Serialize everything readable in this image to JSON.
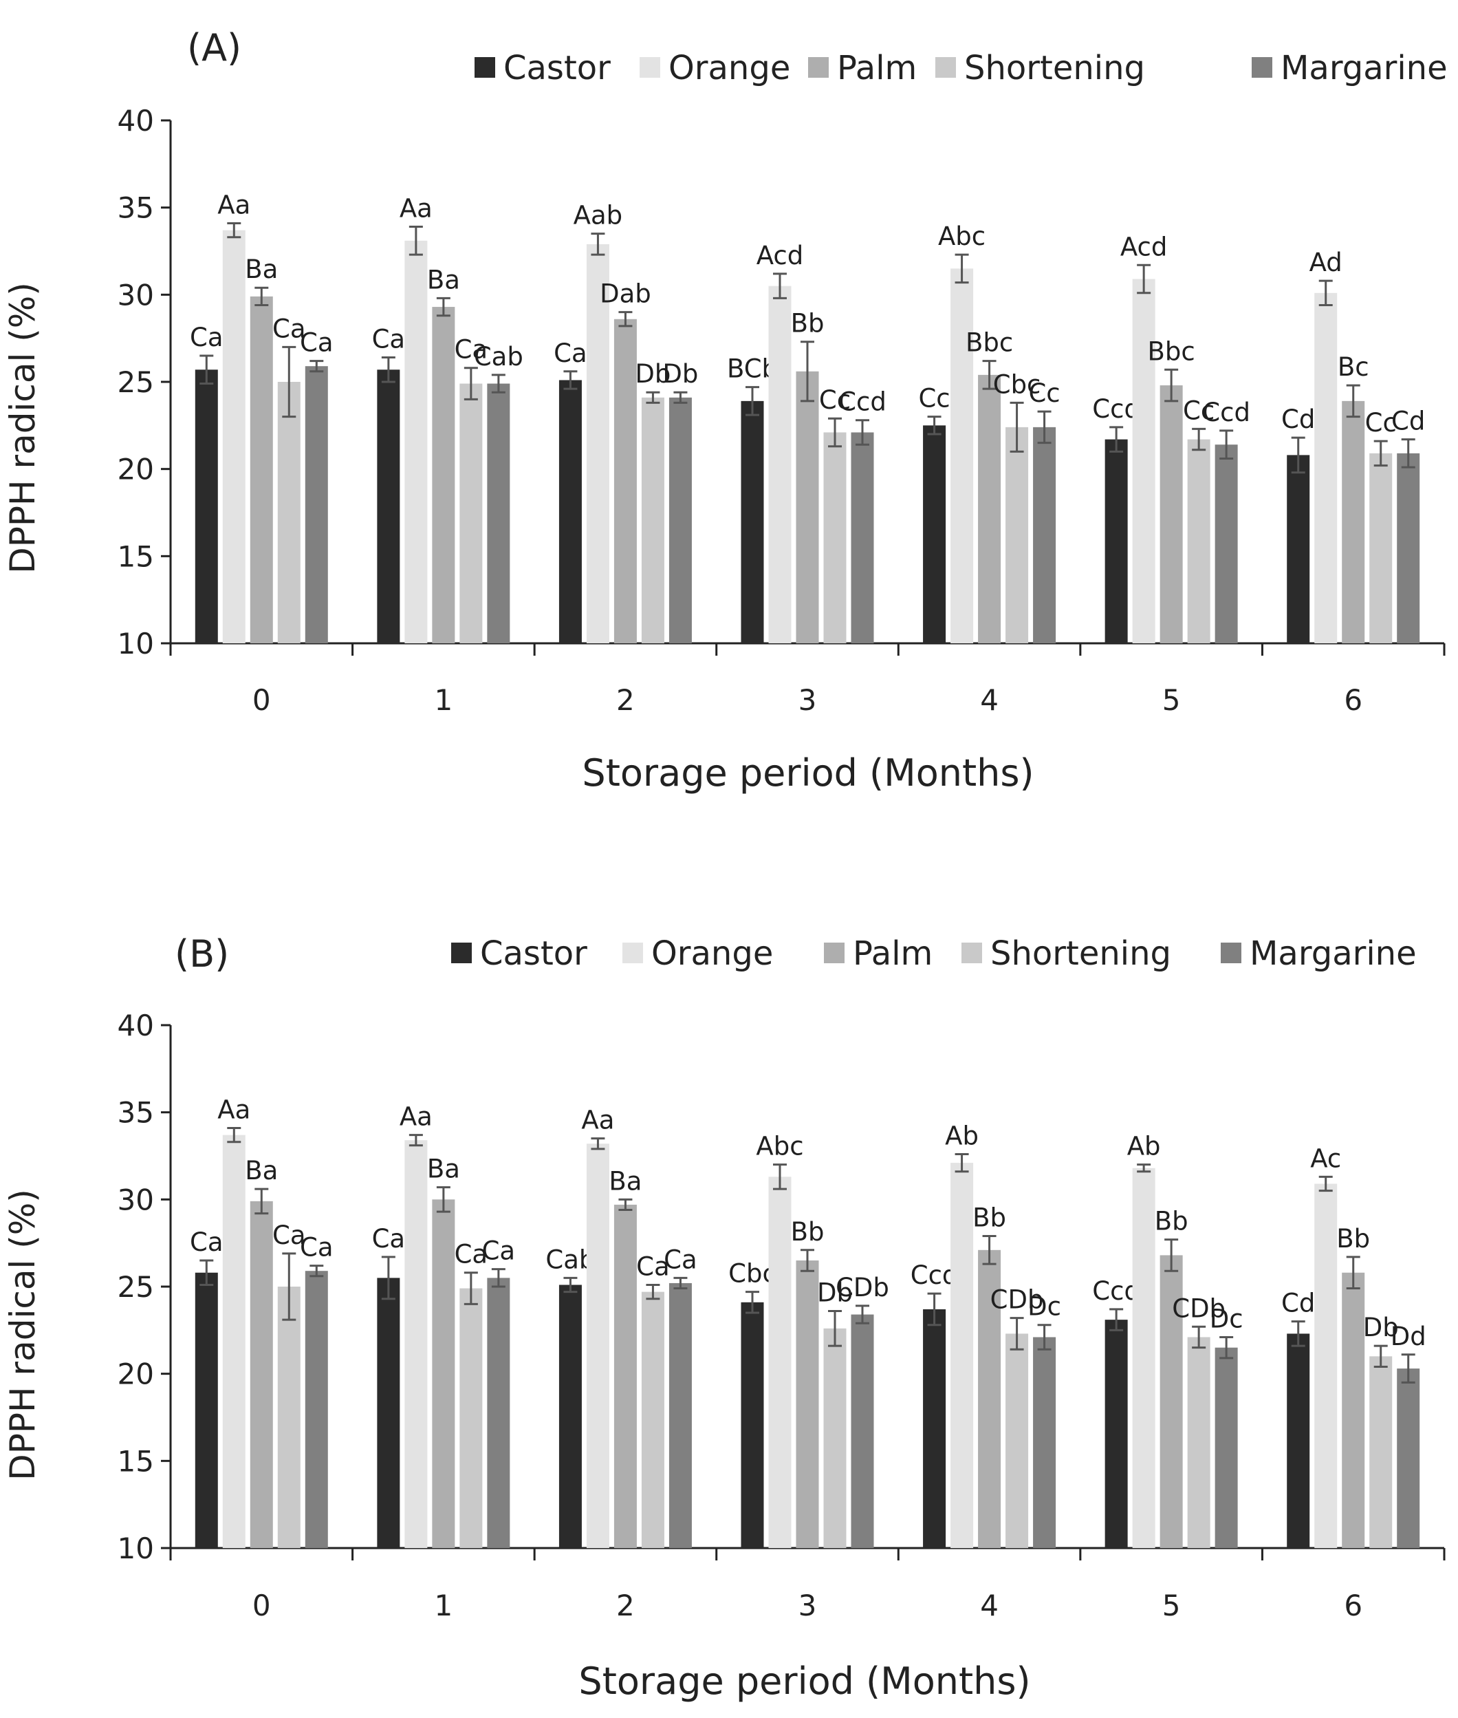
{
  "chart_data": [
    {
      "type": "bar",
      "panel_label": "(A)",
      "title": "",
      "xlabel": "Storage period (Months)",
      "ylabel": "DPPH radical (%)",
      "ylim": [
        10,
        40
      ],
      "yticks": [
        10,
        15,
        20,
        25,
        30,
        35,
        40
      ],
      "categories": [
        "0",
        "1",
        "2",
        "3",
        "4",
        "5",
        "6"
      ],
      "legend_position": "top-right",
      "series": [
        {
          "name": "Castor",
          "color": "#2b2b2b",
          "values": [
            25.7,
            25.7,
            25.1,
            23.9,
            22.5,
            21.7,
            20.8
          ],
          "errors": [
            0.8,
            0.7,
            0.5,
            0.8,
            0.5,
            0.7,
            1.0
          ],
          "labels": [
            "Ca",
            "Ca",
            "Ca",
            "BCb",
            "Cc",
            "Ccd",
            "Cd"
          ]
        },
        {
          "name": "Orange",
          "color": "#e3e3e3",
          "values": [
            33.7,
            33.1,
            32.9,
            30.5,
            31.5,
            30.9,
            30.1
          ],
          "errors": [
            0.4,
            0.8,
            0.6,
            0.7,
            0.8,
            0.8,
            0.7
          ],
          "labels": [
            "Aa",
            "Aa",
            "Aab",
            "Acd",
            "Abc",
            "Acd",
            "Ad"
          ]
        },
        {
          "name": "Palm",
          "color": "#aeaeae",
          "values": [
            29.9,
            29.3,
            28.6,
            25.6,
            25.4,
            24.8,
            23.9
          ],
          "errors": [
            0.5,
            0.5,
            0.4,
            1.7,
            0.8,
            0.9,
            0.9
          ],
          "labels": [
            "Ba",
            "Ba",
            "Dab",
            "Bb",
            "Bbc",
            "Bbc",
            "Bc"
          ]
        },
        {
          "name": "Shortening",
          "color": "#c9c9c9",
          "values": [
            25.0,
            24.9,
            24.1,
            22.1,
            22.4,
            21.7,
            20.9
          ],
          "errors": [
            2.0,
            0.9,
            0.3,
            0.8,
            1.4,
            0.6,
            0.7
          ],
          "labels": [
            "Ca",
            "Ca",
            "Db",
            "Cc",
            "Cbc",
            "Cc",
            "Cc"
          ]
        },
        {
          "name": "Margarine",
          "color": "#808080",
          "values": [
            25.9,
            24.9,
            24.1,
            22.1,
            22.4,
            21.4,
            20.9
          ],
          "errors": [
            0.3,
            0.5,
            0.3,
            0.7,
            0.9,
            0.8,
            0.8
          ],
          "labels": [
            "Ca",
            "Cab",
            "Db",
            "Ccd",
            "Cc",
            "Ccd",
            "Cd"
          ]
        }
      ]
    },
    {
      "type": "bar",
      "panel_label": "(B)",
      "title": "",
      "xlabel": "Storage period (Months)",
      "ylabel": "DPPH radical (%)",
      "ylim": [
        10,
        40
      ],
      "yticks": [
        10,
        15,
        20,
        25,
        30,
        35,
        40
      ],
      "categories": [
        "0",
        "1",
        "2",
        "3",
        "4",
        "5",
        "6"
      ],
      "legend_position": "top-right",
      "series": [
        {
          "name": "Castor",
          "color": "#2b2b2b",
          "values": [
            25.8,
            25.5,
            25.1,
            24.1,
            23.7,
            23.1,
            22.3
          ],
          "errors": [
            0.7,
            1.2,
            0.4,
            0.6,
            0.9,
            0.6,
            0.7
          ],
          "labels": [
            "Ca",
            "Ca",
            "Cab",
            "Cbc",
            "Ccd",
            "Ccd",
            "Cd"
          ]
        },
        {
          "name": "Orange",
          "color": "#e3e3e3",
          "values": [
            33.7,
            33.4,
            33.2,
            31.3,
            32.1,
            31.8,
            30.9
          ],
          "errors": [
            0.4,
            0.3,
            0.3,
            0.7,
            0.5,
            0.2,
            0.4
          ],
          "labels": [
            "Aa",
            "Aa",
            "Aa",
            "Abc",
            "Ab",
            "Ab",
            "Ac"
          ]
        },
        {
          "name": "Palm",
          "color": "#aeaeae",
          "values": [
            29.9,
            30.0,
            29.7,
            26.5,
            27.1,
            26.8,
            25.8
          ],
          "errors": [
            0.7,
            0.7,
            0.3,
            0.6,
            0.8,
            0.9,
            0.9
          ],
          "labels": [
            "Ba",
            "Ba",
            "Ba",
            "Bb",
            "Bb",
            "Bb",
            "Bb"
          ]
        },
        {
          "name": "Shortening",
          "color": "#c9c9c9",
          "values": [
            25.0,
            24.9,
            24.7,
            22.6,
            22.3,
            22.1,
            21.0
          ],
          "errors": [
            1.9,
            0.9,
            0.4,
            1.0,
            0.9,
            0.6,
            0.6
          ],
          "labels": [
            "Ca",
            "Ca",
            "Ca",
            "Db",
            "CDb",
            "CDb",
            "Db"
          ]
        },
        {
          "name": "Margarine",
          "color": "#808080",
          "values": [
            25.9,
            25.5,
            25.2,
            23.4,
            22.1,
            21.5,
            20.3
          ],
          "errors": [
            0.3,
            0.5,
            0.3,
            0.5,
            0.7,
            0.6,
            0.8
          ],
          "labels": [
            "Ca",
            "Ca",
            "Ca",
            "CDb",
            "Dc",
            "Dc",
            "Dd"
          ]
        }
      ]
    }
  ]
}
